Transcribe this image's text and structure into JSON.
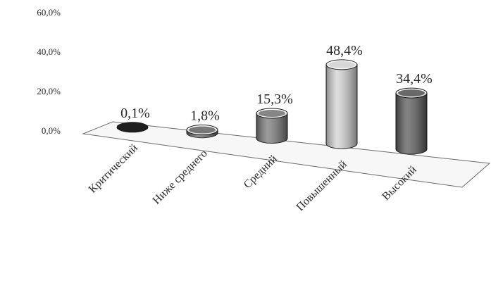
{
  "chart_data": {
    "type": "bar",
    "categories": [
      "Критический",
      "Ниже среднего",
      "Средний",
      "Повышенный",
      "Высокий"
    ],
    "values": [
      0.1,
      1.8,
      15.3,
      48.4,
      34.4
    ],
    "data_labels": [
      "0,1%",
      "1,8%",
      "15,3%",
      "48,4%",
      "34,4%"
    ],
    "y_ticks": [
      {
        "value": 0,
        "label": "0,0%"
      },
      {
        "value": 20,
        "label": "20,0%"
      },
      {
        "value": 40,
        "label": "40,0%"
      },
      {
        "value": 60,
        "label": "60,0%"
      }
    ],
    "ylim": [
      0,
      60
    ],
    "bar_style": "3d-cylinder",
    "grid": false,
    "legend": false,
    "colors": [
      "#1e1e1e",
      "#6a6a6a",
      "#7a7a7a",
      "#d4d4d4",
      "#5a5a5a"
    ]
  }
}
